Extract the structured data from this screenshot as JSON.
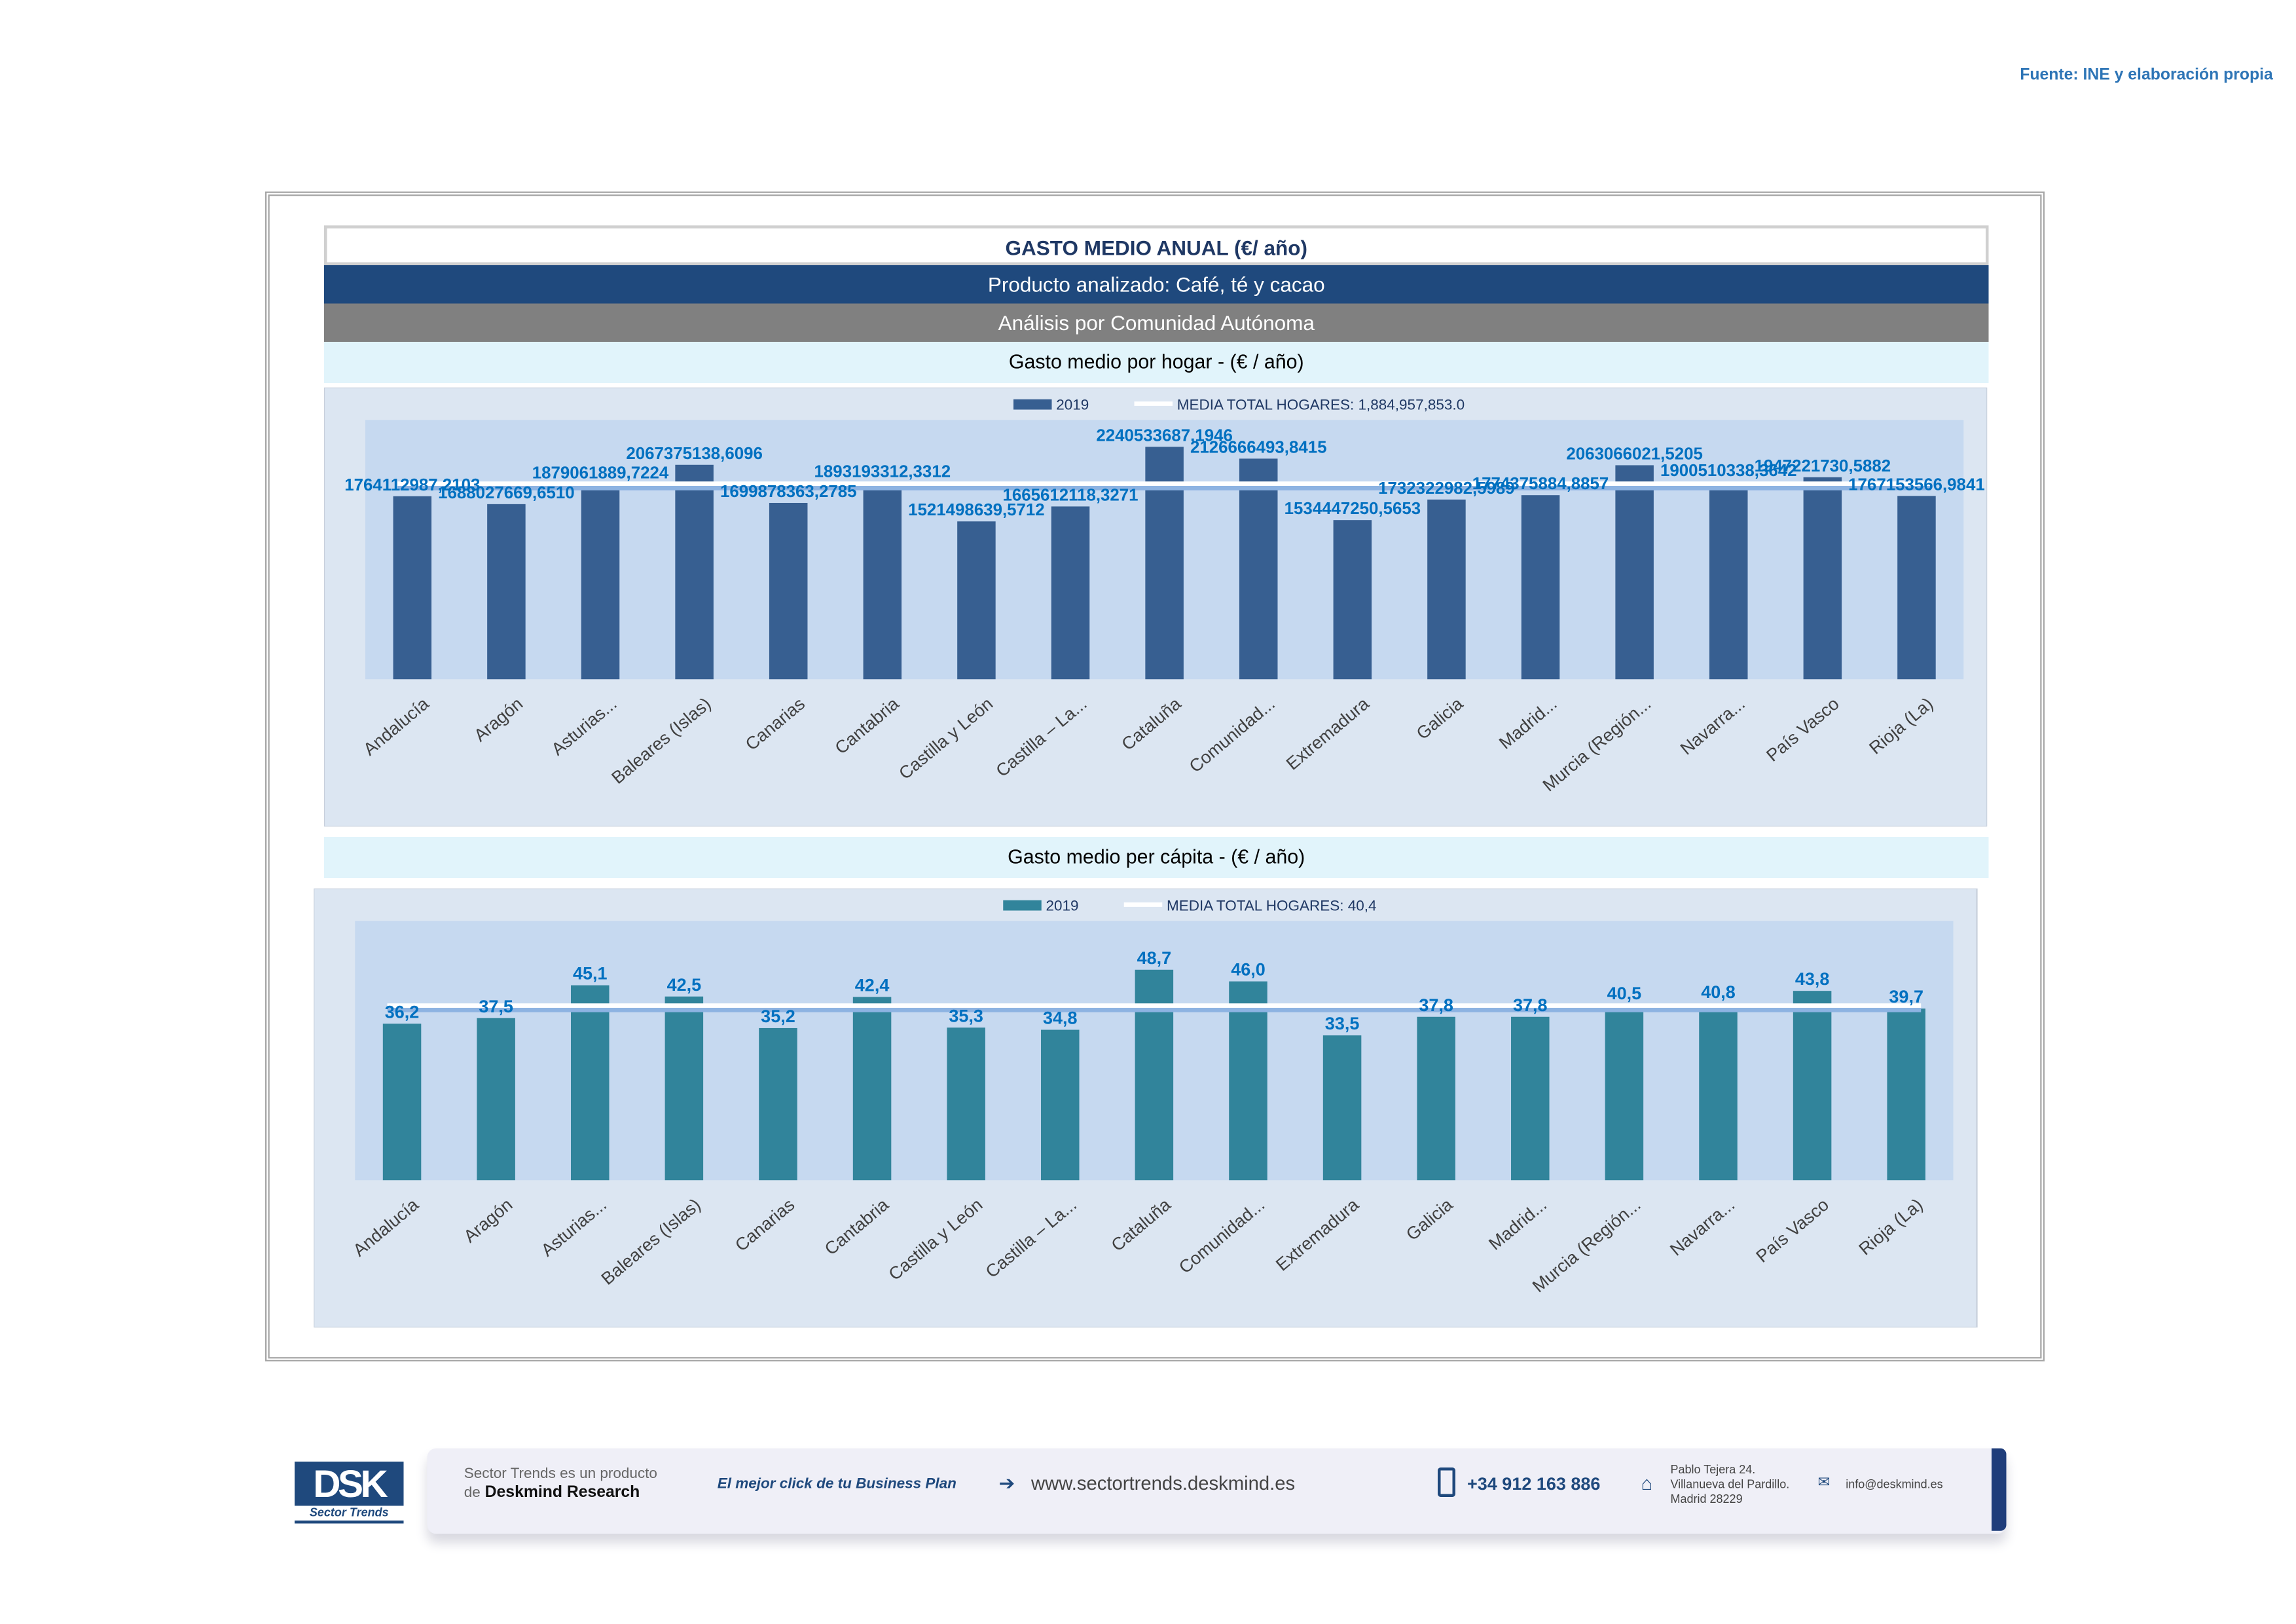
{
  "source": "Fuente: INE y elaboración propia",
  "header": {
    "title": "GASTO MEDIO ANUAL (€/ año)",
    "product": "Producto analizado: Café, té y cacao",
    "analysis": "Análisis por Comunidad Autónoma"
  },
  "chart_data": [
    {
      "type": "bar",
      "title": "Gasto medio por hogar -  (€ / año)",
      "categories": [
        "Andalucía",
        "Aragón",
        "Asturias...",
        "Baleares (Islas)",
        "Canarias",
        "Cantabria",
        "Castilla y León",
        "Castilla – La...",
        "Cataluña",
        "Comunidad...",
        "Extremadura",
        "Galicia",
        "Madrid...",
        "Murcia (Región...",
        "Navarra...",
        "País Vasco",
        "Rioja (La)"
      ],
      "series": [
        {
          "name": "2019",
          "values": [
            1764112987.2103,
            1688027669.651,
            1879061889.7224,
            2067375138.6096,
            1699878363.2785,
            1893193312.3312,
            1521498639.5712,
            1665612118.3271,
            2240533687.1946,
            2126666493.8415,
            1534447250.5653,
            1732322982.5989,
            1774375884.8857,
            2063066021.5205,
            1900510338.3642,
            1947221730.5882,
            1767153566.9841
          ]
        }
      ],
      "labels": [
        "1764112987,2103",
        "1688027669,6510",
        "1879061889,7224",
        "2067375138,6096",
        "1699878363,2785",
        "1893193312,3312",
        "1521498639,5712",
        "1665612118,3271",
        "2240533687,1946",
        "2126666493,8415",
        "1534447250,5653",
        "1732322982,5989",
        "1774375884,8857",
        "2063066021,5205",
        "1900510338,3642",
        "1947221730,5882",
        "1767153566,9841"
      ],
      "reference": {
        "name": "MEDIA TOTAL  HOGARES:",
        "label": "1,884,957,853.0",
        "value": 1884957853.0
      },
      "ylim": [
        0,
        2500000000
      ],
      "bar_color": "#375f91",
      "legend": "top"
    },
    {
      "type": "bar",
      "title": "Gasto medio per cápita -  (€ / año)",
      "categories": [
        "Andalucía",
        "Aragón",
        "Asturias...",
        "Baleares (Islas)",
        "Canarias",
        "Cantabria",
        "Castilla y León",
        "Castilla – La...",
        "Cataluña",
        "Comunidad...",
        "Extremadura",
        "Galicia",
        "Madrid...",
        "Murcia (Región...",
        "Navarra...",
        "País Vasco",
        "Rioja (La)"
      ],
      "series": [
        {
          "name": "2019",
          "values": [
            36.2,
            37.5,
            45.1,
            42.5,
            35.2,
            42.4,
            35.3,
            34.8,
            48.7,
            46.0,
            33.5,
            37.8,
            37.8,
            40.5,
            40.8,
            43.8,
            39.7
          ]
        }
      ],
      "labels": [
        "36,2",
        "37,5",
        "45,1",
        "42,5",
        "35,2",
        "42,4",
        "35,3",
        "34,8",
        "48,7",
        "46,0",
        "33,5",
        "37,8",
        "37,8",
        "40,5",
        "40,8",
        "43,8",
        "39,7"
      ],
      "reference": {
        "name": "MEDIA TOTAL  HOGARES:",
        "label": "40,4",
        "value": 40.4
      },
      "ylim": [
        0,
        60
      ],
      "bar_color": "#31849b",
      "legend": "top"
    }
  ],
  "footer": {
    "logo": "DSK",
    "logo_sub": "Sector Trends",
    "product_line1": "Sector Trends es un producto",
    "product_line2_prefix": "de",
    "product_line2_brand": "Deskmind Research",
    "slogan": "El mejor click de tu Business Plan",
    "website": "www.sectortrends.deskmind.es",
    "phone": "+34 912 163 886",
    "address1": "Pablo Tejera 24.",
    "address2": "Villanueva del Pardillo.",
    "address3": "Madrid 28229",
    "email": "info@deskmind.es"
  }
}
